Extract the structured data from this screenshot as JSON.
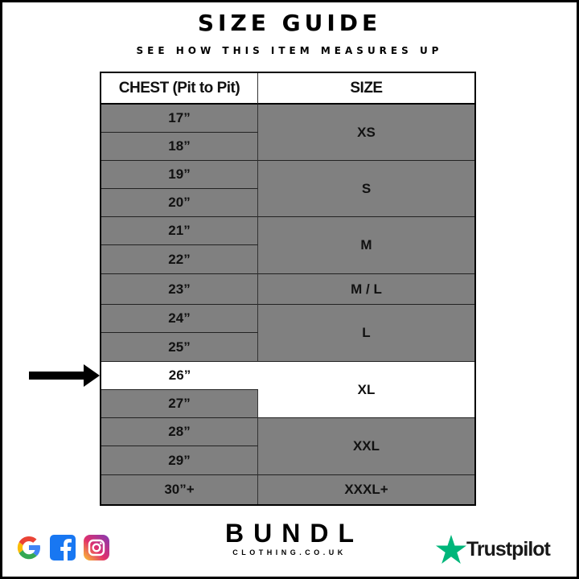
{
  "title": "SIZE GUIDE",
  "subtitle": "SEE HOW THIS ITEM MEASURES UP",
  "table": {
    "headers": [
      "CHEST (Pit to Pit)",
      "SIZE"
    ],
    "chest": [
      "17”",
      "18”",
      "19”",
      "20”",
      "21”",
      "22”",
      "23”",
      "24”",
      "25”",
      "26”",
      "27”",
      "28”",
      "29”",
      "30”+"
    ],
    "sizes": [
      "XS",
      "S",
      "M",
      "M / L",
      "L",
      "XL",
      "XXL",
      "XXXL+"
    ],
    "highlighted_chest": "26”",
    "highlighted_size": "XL"
  },
  "colors": {
    "row_bg": "#808080",
    "highlight_bg": "#ffffff",
    "trustpilot_green": "#00b67a"
  },
  "footer": {
    "brand": "BUNDL",
    "domain": "CLOTHING.CO.UK",
    "social_icons": [
      "google-icon",
      "facebook-icon",
      "instagram-icon"
    ],
    "trustpilot": "Trustpilot"
  }
}
